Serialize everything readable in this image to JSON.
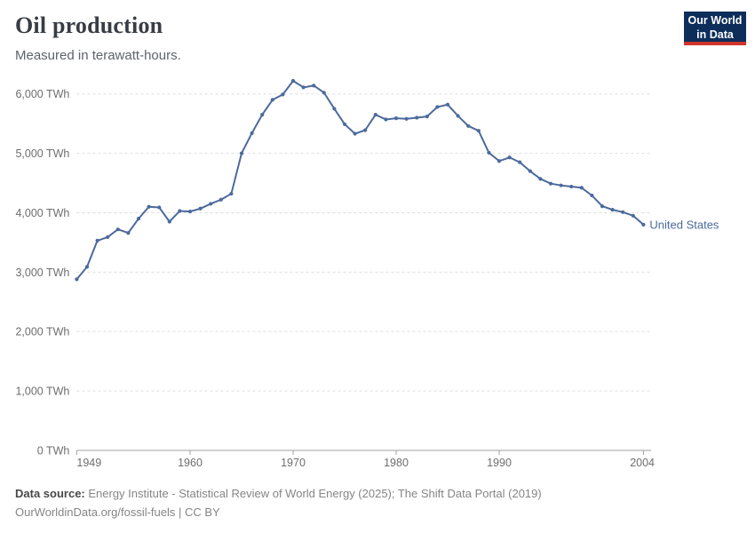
{
  "header": {
    "title": "Oil production",
    "subtitle": "Measured in terawatt-hours.",
    "logo_line1": "Our World",
    "logo_line2": "in Data"
  },
  "chart_data": {
    "type": "line",
    "title": "Oil production",
    "unit": "TWh",
    "xlabel": "",
    "ylabel": "",
    "xlim": [
      1949,
      2005
    ],
    "ylim": [
      0,
      6400
    ],
    "grid": "horizontal-dashed",
    "x_ticks": [
      1949,
      1960,
      1970,
      1980,
      1990,
      2004
    ],
    "y_ticks": [
      0,
      1000,
      2000,
      3000,
      4000,
      5000,
      6000
    ],
    "y_tick_suffix": " TWh",
    "series": [
      {
        "name": "United States",
        "color": "#4c6a9c",
        "years": [
          1949,
          1950,
          1951,
          1952,
          1953,
          1954,
          1955,
          1956,
          1957,
          1958,
          1959,
          1960,
          1961,
          1962,
          1963,
          1964,
          1965,
          1966,
          1967,
          1968,
          1969,
          1970,
          1971,
          1972,
          1973,
          1974,
          1975,
          1976,
          1977,
          1978,
          1979,
          1980,
          1981,
          1982,
          1983,
          1984,
          1985,
          1986,
          1987,
          1988,
          1989,
          1990,
          1991,
          1992,
          1993,
          1994,
          1995,
          1996,
          1997,
          1998,
          1999,
          2000,
          2001,
          2002,
          2003,
          2004
        ],
        "values": [
          2880,
          3090,
          3530,
          3590,
          3720,
          3660,
          3900,
          4100,
          4090,
          3850,
          4030,
          4020,
          4070,
          4150,
          4220,
          4320,
          5000,
          5340,
          5650,
          5900,
          5990,
          6220,
          6110,
          6140,
          6020,
          5750,
          5490,
          5330,
          5390,
          5650,
          5570,
          5590,
          5580,
          5600,
          5620,
          5780,
          5820,
          5630,
          5460,
          5380,
          5010,
          4870,
          4930,
          4850,
          4700,
          4570,
          4490,
          4460,
          4440,
          4420,
          4290,
          4110,
          4050,
          4010,
          3950,
          3800
        ]
      }
    ],
    "entity_label": "United States"
  },
  "colors": {
    "line": "#4c6a9c",
    "grid": "#dddddd",
    "axis": "#a1a1a1",
    "logo_bg": "#0d2e5b",
    "logo_red": "#d0342c"
  },
  "footer": {
    "datasource_label": "Data source:",
    "datasource_text": " Energy Institute - Statistical Review of World Energy (2025); The Shift Data Portal (2019)",
    "license_line": "OurWorldinData.org/fossil-fuels | CC BY"
  }
}
